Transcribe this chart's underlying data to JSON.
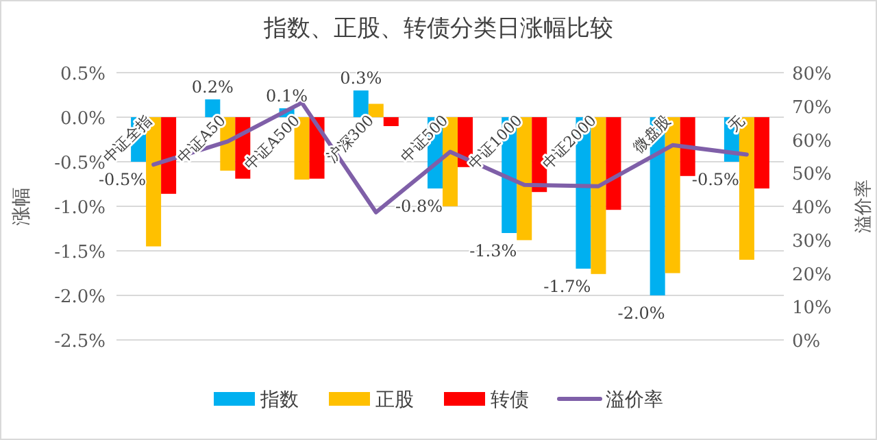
{
  "chart_data": {
    "type": "bar",
    "title": "指数、正股、转债分类日涨幅比较",
    "ylabel": "涨幅",
    "y2label": "溢价率",
    "categories": [
      "中证全指",
      "中证A50",
      "中证A500",
      "沪深300",
      "中证500",
      "中证1000",
      "中证2000",
      "微盘股",
      "无"
    ],
    "series": [
      {
        "name": "指数",
        "color": "#00b0f0",
        "values": [
          -0.5,
          0.2,
          0.1,
          0.3,
          -0.8,
          -1.3,
          -1.7,
          -2.0,
          -0.5
        ],
        "value_labels": [
          "-0.5%",
          "0.2%",
          "0.1%",
          "0.3%",
          "-0.8%",
          "-1.3%",
          "-1.7%",
          "-2.0%",
          "-0.5%"
        ]
      },
      {
        "name": "正股",
        "color": "#ffc000",
        "values": [
          -1.45,
          -0.6,
          -0.7,
          0.15,
          -1.0,
          -1.38,
          -1.76,
          -1.75,
          -1.6
        ]
      },
      {
        "name": "转债",
        "color": "#ff0000",
        "values": [
          -0.86,
          -0.69,
          -0.69,
          -0.1,
          -0.56,
          -0.84,
          -1.04,
          -0.66,
          -0.8
        ]
      },
      {
        "name": "溢价率",
        "type": "line",
        "axis": "y2",
        "color": "#7f5fa8",
        "values": [
          52.5,
          59.4,
          71,
          38.2,
          56.3,
          46.4,
          46,
          58.3,
          55.5
        ]
      }
    ],
    "ylim": [
      -2.5,
      0.5
    ],
    "yticks": [
      {
        "value": 0.5,
        "label": "0.5%"
      },
      {
        "value": 0.0,
        "label": "0.0%"
      },
      {
        "value": -0.5,
        "label": "-0.5%"
      },
      {
        "value": -1.0,
        "label": "-1.0%"
      },
      {
        "value": -1.5,
        "label": "-1.5%"
      },
      {
        "value": -2.0,
        "label": "-2.0%"
      },
      {
        "value": -2.5,
        "label": "-2.5%"
      }
    ],
    "y2lim": [
      0,
      80
    ],
    "y2ticks": [
      {
        "value": 0,
        "label": "0%"
      },
      {
        "value": 10,
        "label": "10%"
      },
      {
        "value": 20,
        "label": "20%"
      },
      {
        "value": 30,
        "label": "30%"
      },
      {
        "value": 40,
        "label": "40%"
      },
      {
        "value": 50,
        "label": "50%"
      },
      {
        "value": 60,
        "label": "60%"
      },
      {
        "value": 70,
        "label": "70%"
      },
      {
        "value": 80,
        "label": "80%"
      }
    ],
    "grid": "y",
    "legend": "bottom"
  }
}
